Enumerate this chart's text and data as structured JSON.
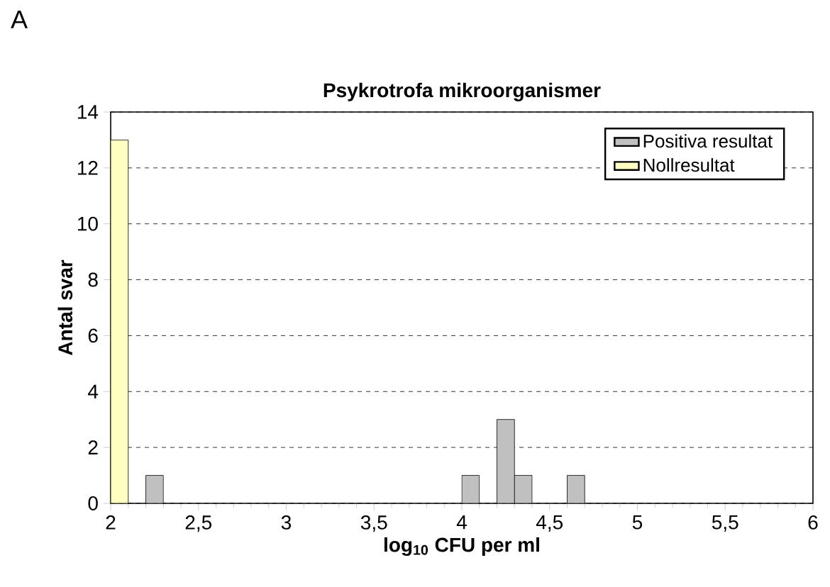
{
  "chart_data": {
    "type": "histogram",
    "title": "Psykrotrofa mikroorganismer",
    "xlabel": "log$_{10}$ CFU per ml",
    "ylabel": "Antal svar",
    "annotations": [
      "A"
    ],
    "bins": [
      2.0,
      2.1,
      2.2,
      2.3,
      2.4,
      2.5,
      2.6,
      2.7,
      2.8,
      2.9,
      3.0,
      3.1,
      3.2,
      3.3,
      3.4,
      3.5,
      3.6,
      3.7,
      3.8,
      3.9,
      4.0,
      4.1,
      4.2,
      4.3,
      4.4,
      4.5,
      4.6,
      4.7
    ],
    "series": [
      {
        "name": "Positiva resultat",
        "color": "#c0c0c0",
        "values": [
          0,
          0,
          1,
          0,
          0,
          0,
          0,
          0,
          0,
          0,
          0,
          0,
          0,
          0,
          0,
          0,
          0,
          0,
          0,
          0,
          1,
          0,
          3,
          1,
          0,
          0,
          1
        ]
      },
      {
        "name": "Nollresultat",
        "color": "#ffffc0",
        "values": [
          13,
          0,
          0,
          0,
          0,
          0,
          0,
          0,
          0,
          0,
          0,
          0,
          0,
          0,
          0,
          0,
          0,
          0,
          0,
          0,
          0,
          0,
          0,
          0,
          0,
          0,
          0
        ]
      }
    ],
    "xlim": [
      2,
      6
    ],
    "ylim": [
      0,
      14
    ],
    "xticks": [
      2,
      {
        "value": 2.5,
        "label": "2,5"
      },
      3,
      {
        "value": 3.5,
        "label": "3,5"
      },
      4,
      {
        "value": 4.5,
        "label": "4,5"
      },
      5,
      {
        "value": 5.5,
        "label": "5,5"
      },
      6
    ],
    "yticks": [
      0,
      2,
      4,
      6,
      8,
      10,
      12,
      14
    ],
    "grid": "y",
    "legend": "top right"
  }
}
